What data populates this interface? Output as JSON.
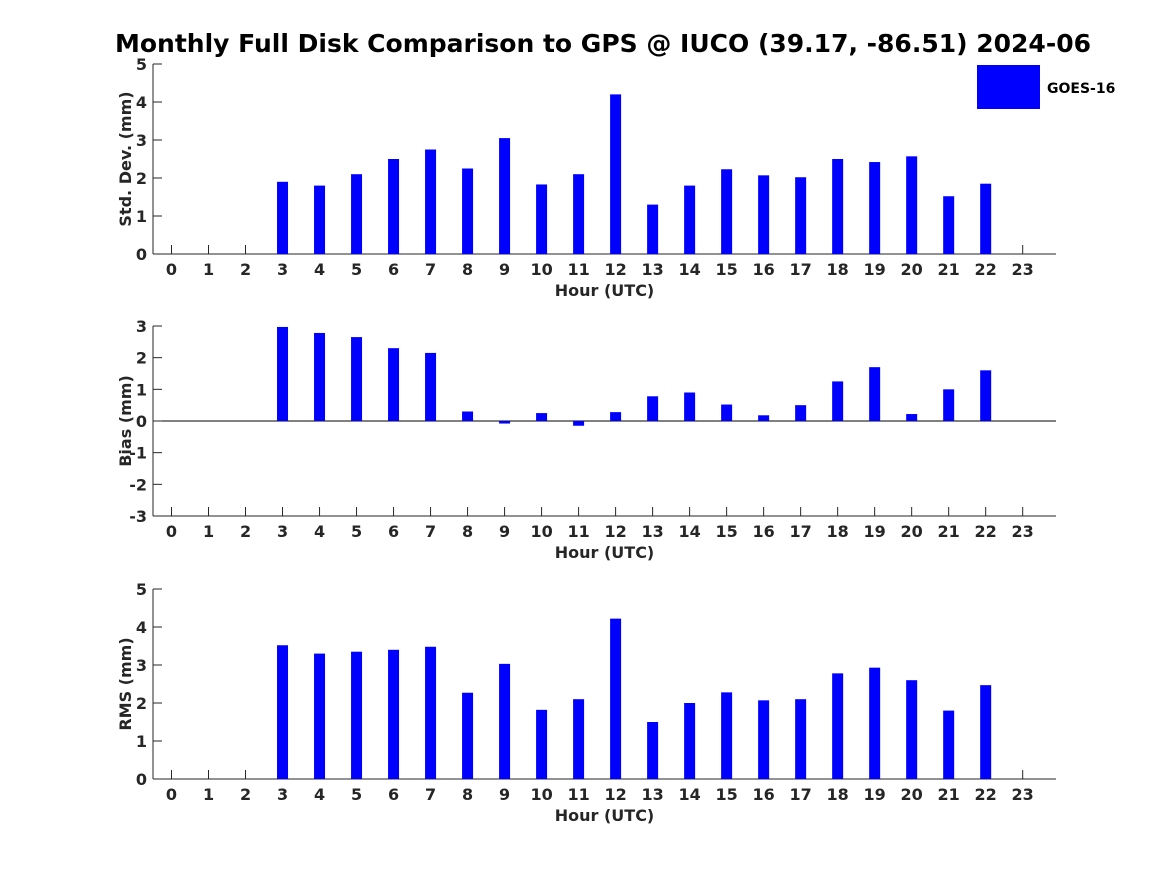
{
  "chart_data": {
    "title": "Monthly Full Disk Comparison to GPS @ IUCO (39.17, -86.51) 2024-06",
    "legend": {
      "label": "GOES-16",
      "color": "#0000ff",
      "placement": "top-right"
    },
    "series_color": "#0000ff",
    "panels": [
      {
        "type": "bar",
        "xlabel": "Hour (UTC)",
        "ylabel": "Std. Dev. (mm)",
        "x": [
          0,
          1,
          2,
          3,
          4,
          5,
          6,
          7,
          8,
          9,
          10,
          11,
          12,
          13,
          14,
          15,
          16,
          17,
          18,
          19,
          20,
          21,
          22,
          23
        ],
        "xticks": [
          "0",
          "1",
          "2",
          "3",
          "4",
          "5",
          "6",
          "7",
          "8",
          "9",
          "10",
          "11",
          "12",
          "13",
          "14",
          "15",
          "16",
          "17",
          "18",
          "19",
          "20",
          "21",
          "22",
          "23"
        ],
        "yticks": [
          "0",
          "1",
          "2",
          "3",
          "4",
          "5"
        ],
        "ylim": [
          0,
          5
        ],
        "values": [
          null,
          null,
          null,
          1.9,
          1.8,
          2.1,
          2.5,
          2.75,
          2.25,
          3.05,
          1.83,
          2.1,
          4.2,
          1.3,
          1.8,
          2.23,
          2.07,
          2.02,
          2.5,
          2.42,
          2.57,
          1.52,
          1.85,
          null
        ]
      },
      {
        "type": "bar",
        "xlabel": "Hour (UTC)",
        "ylabel": "Bias (mm)",
        "x": [
          0,
          1,
          2,
          3,
          4,
          5,
          6,
          7,
          8,
          9,
          10,
          11,
          12,
          13,
          14,
          15,
          16,
          17,
          18,
          19,
          20,
          21,
          22,
          23
        ],
        "xticks": [
          "0",
          "1",
          "2",
          "3",
          "4",
          "5",
          "6",
          "7",
          "8",
          "9",
          "10",
          "11",
          "12",
          "13",
          "14",
          "15",
          "16",
          "17",
          "18",
          "19",
          "20",
          "21",
          "22",
          "23"
        ],
        "yticks": [
          "-3",
          "-2",
          "-1",
          "0",
          "1",
          "2",
          "3"
        ],
        "ylim": [
          -3,
          3
        ],
        "values": [
          null,
          null,
          null,
          2.97,
          2.78,
          2.65,
          2.3,
          2.15,
          0.3,
          -0.08,
          0.25,
          -0.15,
          0.28,
          0.78,
          0.9,
          0.52,
          0.18,
          0.5,
          1.25,
          1.7,
          0.22,
          1.0,
          1.6,
          null
        ]
      },
      {
        "type": "bar",
        "xlabel": "Hour (UTC)",
        "ylabel": "RMS (mm)",
        "x": [
          0,
          1,
          2,
          3,
          4,
          5,
          6,
          7,
          8,
          9,
          10,
          11,
          12,
          13,
          14,
          15,
          16,
          17,
          18,
          19,
          20,
          21,
          22,
          23
        ],
        "xticks": [
          "0",
          "1",
          "2",
          "3",
          "4",
          "5",
          "6",
          "7",
          "8",
          "9",
          "10",
          "11",
          "12",
          "13",
          "14",
          "15",
          "16",
          "17",
          "18",
          "19",
          "20",
          "21",
          "22",
          "23"
        ],
        "yticks": [
          "0",
          "1",
          "2",
          "3",
          "4",
          "5"
        ],
        "ylim": [
          0,
          5
        ],
        "values": [
          null,
          null,
          null,
          3.52,
          3.3,
          3.35,
          3.4,
          3.48,
          2.27,
          3.03,
          1.82,
          2.1,
          4.22,
          1.5,
          2.0,
          2.28,
          2.07,
          2.1,
          2.78,
          2.93,
          2.6,
          1.8,
          2.47,
          null
        ]
      }
    ]
  }
}
